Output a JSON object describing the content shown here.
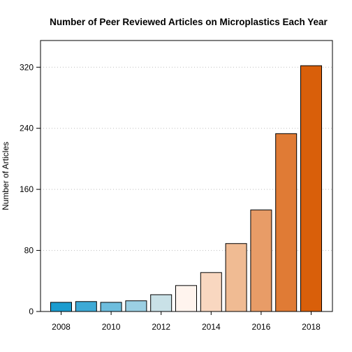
{
  "chart_data": {
    "type": "bar",
    "title": "Number of Peer Reviewed Articles on Microplastics Each Year",
    "xlabel": "",
    "ylabel": "Number of Articles",
    "categories": [
      "2008",
      "2009",
      "2010",
      "2011",
      "2012",
      "2013",
      "2014",
      "2015",
      "2016",
      "2017",
      "2018"
    ],
    "values": [
      12,
      13,
      12,
      14,
      22,
      34,
      51,
      89,
      133,
      233,
      322
    ],
    "bar_colors": [
      "#1b9ccf",
      "#3eaad6",
      "#6dbddd",
      "#9bcfe3",
      "#c9e1e7",
      "#fff4ee",
      "#f9d7c0",
      "#f0bb93",
      "#e89c67",
      "#e07b35",
      "#d95f0a"
    ],
    "x_tick_labels": [
      "2008",
      "2010",
      "2012",
      "2014",
      "2016",
      "2018"
    ],
    "y_ticks": [
      0,
      80,
      160,
      240,
      320
    ],
    "ylim": [
      0,
      355
    ],
    "grid": "horizontal dotted"
  }
}
